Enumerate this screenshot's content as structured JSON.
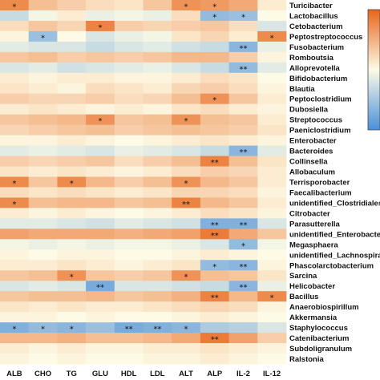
{
  "chart_data": {
    "type": "heatmap",
    "title": "",
    "xlabel": "",
    "ylabel": "",
    "columns": [
      "ALB",
      "CHO",
      "TG",
      "GLU",
      "HDL",
      "LDL",
      "ALT",
      "ALP",
      "IL-2",
      "IL-12"
    ],
    "rows": [
      "Turicibacter",
      "Lactobacillus",
      "Cetobacterium",
      "Peptostreptococcus",
      "Fusobacterium",
      "Romboutsia",
      "Alloprevotella",
      "Bifidobacterium",
      "Blautia",
      "Peptoclostridium",
      "Dubosiella",
      "Streptococcus",
      "Paeniclostridium",
      "Enterobacter",
      "Bacteroides",
      "Collinsella",
      "Allobaculum",
      "Terrisporobacter",
      "Faecalibacterium",
      "unidentified_Clostridiales",
      "Citrobacter",
      "Parasutterella",
      "unidentified_Enterobacteriaceae",
      "Megasphaera",
      "unidentified_Lachnospiraceae",
      "Phascolarctobacterium",
      "Sarcina",
      "Helicobacter",
      "Bacillus",
      "Anaerobiospirillum",
      "Akkermansia",
      "Staphylococcus",
      "Catenibacterium",
      "Subdoligranulum",
      "Ralstonia"
    ],
    "values": [
      [
        0.75,
        0.4,
        0.3,
        0.2,
        0.15,
        0.35,
        0.7,
        0.65,
        0.55,
        0.1
      ],
      [
        -0.3,
        -0.05,
        0.1,
        -0.1,
        -0.05,
        -0.1,
        0.2,
        -0.6,
        -0.55,
        0.0
      ],
      [
        0.2,
        0.35,
        0.25,
        0.8,
        0.3,
        0.25,
        0.3,
        0.35,
        0.2,
        -0.2
      ],
      [
        0.05,
        -0.55,
        0.0,
        -0.2,
        -0.1,
        -0.05,
        0.15,
        0.25,
        0.1,
        0.75
      ],
      [
        -0.15,
        -0.2,
        -0.2,
        -0.3,
        -0.2,
        -0.15,
        -0.25,
        -0.3,
        -0.65,
        -0.1
      ],
      [
        0.35,
        0.4,
        0.3,
        0.35,
        0.3,
        0.35,
        0.45,
        0.45,
        0.3,
        0.05
      ],
      [
        -0.2,
        -0.15,
        -0.25,
        -0.2,
        -0.15,
        -0.1,
        -0.2,
        -0.3,
        -0.6,
        -0.15
      ],
      [
        0.1,
        0.05,
        0.1,
        0.1,
        0.05,
        0.05,
        0.1,
        0.2,
        0.15,
        0.0
      ],
      [
        0.15,
        0.1,
        0.05,
        0.2,
        0.15,
        0.1,
        0.25,
        0.3,
        0.2,
        0.05
      ],
      [
        0.3,
        0.25,
        0.25,
        0.3,
        0.2,
        0.25,
        0.4,
        0.7,
        0.35,
        0.1
      ],
      [
        0.1,
        0.15,
        0.1,
        0.05,
        0.1,
        0.05,
        0.15,
        0.2,
        0.1,
        0.05
      ],
      [
        0.35,
        0.4,
        0.45,
        0.7,
        0.35,
        0.4,
        0.7,
        0.4,
        0.35,
        0.1
      ],
      [
        0.25,
        0.3,
        0.35,
        0.4,
        0.3,
        0.35,
        0.4,
        0.35,
        0.3,
        0.15
      ],
      [
        0.05,
        0.05,
        0.1,
        0.05,
        0.0,
        0.05,
        0.1,
        0.15,
        0.1,
        0.05
      ],
      [
        -0.15,
        -0.1,
        -0.15,
        -0.2,
        -0.1,
        -0.15,
        -0.2,
        -0.3,
        -0.65,
        -0.15
      ],
      [
        0.3,
        0.25,
        0.3,
        0.35,
        0.2,
        0.3,
        0.4,
        0.8,
        0.4,
        0.15
      ],
      [
        0.15,
        0.1,
        0.15,
        0.1,
        0.05,
        0.1,
        0.2,
        0.3,
        0.25,
        0.1
      ],
      [
        0.75,
        0.35,
        0.75,
        0.45,
        0.3,
        0.4,
        0.7,
        0.45,
        0.35,
        0.1
      ],
      [
        0.2,
        0.15,
        0.2,
        0.15,
        0.1,
        0.15,
        0.25,
        0.25,
        0.2,
        0.05
      ],
      [
        0.75,
        0.4,
        0.45,
        0.45,
        0.35,
        0.4,
        0.8,
        0.45,
        0.35,
        0.1
      ],
      [
        0.1,
        0.05,
        0.1,
        0.05,
        0.0,
        0.05,
        0.1,
        0.2,
        0.15,
        0.05
      ],
      [
        -0.15,
        -0.15,
        -0.2,
        -0.25,
        -0.15,
        -0.2,
        -0.25,
        -0.7,
        -0.7,
        -0.2
      ],
      [
        0.6,
        0.55,
        0.55,
        0.55,
        0.5,
        0.55,
        0.6,
        0.85,
        0.55,
        0.35
      ],
      [
        -0.05,
        -0.1,
        -0.05,
        -0.1,
        -0.05,
        -0.05,
        -0.1,
        -0.2,
        -0.6,
        -0.05
      ],
      [
        0.05,
        0.0,
        0.05,
        0.05,
        0.0,
        0.0,
        0.05,
        0.1,
        0.05,
        0.0
      ],
      [
        0.1,
        0.1,
        0.15,
        0.1,
        0.05,
        0.1,
        0.15,
        -0.6,
        -0.65,
        0.05
      ],
      [
        0.35,
        0.4,
        0.7,
        0.35,
        0.3,
        0.35,
        0.7,
        0.4,
        0.35,
        0.15
      ],
      [
        -0.2,
        -0.15,
        -0.2,
        -0.75,
        -0.2,
        -0.2,
        -0.25,
        -0.3,
        -0.65,
        -0.1
      ],
      [
        0.35,
        0.4,
        0.4,
        0.45,
        0.35,
        0.4,
        0.5,
        0.8,
        0.45,
        0.75
      ],
      [
        0.15,
        0.1,
        0.15,
        0.1,
        0.1,
        0.15,
        0.2,
        0.25,
        0.2,
        0.05
      ],
      [
        0.05,
        0.05,
        0.0,
        0.05,
        0.0,
        0.0,
        0.05,
        0.1,
        0.05,
        0.0
      ],
      [
        -0.7,
        -0.6,
        -0.65,
        -0.55,
        -0.75,
        -0.7,
        -0.65,
        -0.45,
        -0.4,
        -0.2
      ],
      [
        0.45,
        0.45,
        0.5,
        0.4,
        0.4,
        0.45,
        0.55,
        0.85,
        0.6,
        0.3
      ],
      [
        0.1,
        0.05,
        0.1,
        0.05,
        0.05,
        0.1,
        0.1,
        0.15,
        0.1,
        0.05
      ],
      [
        0.05,
        0.0,
        0.05,
        0.0,
        0.0,
        0.05,
        0.05,
        0.1,
        0.05,
        0.0
      ]
    ],
    "significance": [
      [
        "*",
        "",
        "",
        "",
        "",
        "",
        "*",
        "*",
        "",
        ""
      ],
      [
        "",
        "",
        "",
        "",
        "",
        "",
        "",
        "*",
        "*",
        ""
      ],
      [
        "",
        "",
        "",
        "*",
        "",
        "",
        "",
        "",
        "",
        ""
      ],
      [
        "",
        "*",
        "",
        "",
        "",
        "",
        "",
        "",
        "",
        "*"
      ],
      [
        "",
        "",
        "",
        "",
        "",
        "",
        "",
        "",
        "**",
        ""
      ],
      [
        "",
        "",
        "",
        "",
        "",
        "",
        "",
        "",
        "",
        ""
      ],
      [
        "",
        "",
        "",
        "",
        "",
        "",
        "",
        "",
        "**",
        ""
      ],
      [
        "",
        "",
        "",
        "",
        "",
        "",
        "",
        "",
        "",
        ""
      ],
      [
        "",
        "",
        "",
        "",
        "",
        "",
        "",
        "",
        "",
        ""
      ],
      [
        "",
        "",
        "",
        "",
        "",
        "",
        "",
        "*",
        "",
        ""
      ],
      [
        "",
        "",
        "",
        "",
        "",
        "",
        "",
        "",
        "",
        ""
      ],
      [
        "",
        "",
        "",
        "*",
        "",
        "",
        "*",
        "",
        "",
        ""
      ],
      [
        "",
        "",
        "",
        "",
        "",
        "",
        "",
        "",
        "",
        ""
      ],
      [
        "",
        "",
        "",
        "",
        "",
        "",
        "",
        "",
        "",
        ""
      ],
      [
        "",
        "",
        "",
        "",
        "",
        "",
        "",
        "",
        "**",
        ""
      ],
      [
        "",
        "",
        "",
        "",
        "",
        "",
        "",
        "**",
        "",
        ""
      ],
      [
        "",
        "",
        "",
        "",
        "",
        "",
        "",
        "",
        "",
        ""
      ],
      [
        "*",
        "",
        "*",
        "",
        "",
        "",
        "*",
        "",
        "",
        ""
      ],
      [
        "",
        "",
        "",
        "",
        "",
        "",
        "",
        "",
        "",
        ""
      ],
      [
        "*",
        "",
        "",
        "",
        "",
        "",
        "**",
        "",
        "",
        ""
      ],
      [
        "",
        "",
        "",
        "",
        "",
        "",
        "",
        "",
        "",
        ""
      ],
      [
        "",
        "",
        "",
        "",
        "",
        "",
        "",
        "**",
        "**",
        ""
      ],
      [
        "",
        "",
        "",
        "",
        "",
        "",
        "",
        "**",
        "",
        ""
      ],
      [
        "",
        "",
        "",
        "",
        "",
        "",
        "",
        "",
        "*",
        ""
      ],
      [
        "",
        "",
        "",
        "",
        "",
        "",
        "",
        "",
        "",
        ""
      ],
      [
        "",
        "",
        "",
        "",
        "",
        "",
        "",
        "*",
        "**",
        ""
      ],
      [
        "",
        "",
        "*",
        "",
        "",
        "",
        "*",
        "",
        "",
        ""
      ],
      [
        "",
        "",
        "",
        "**",
        "",
        "",
        "",
        "",
        "**",
        ""
      ],
      [
        "",
        "",
        "",
        "",
        "",
        "",
        "",
        "**",
        "",
        "*"
      ],
      [
        "",
        "",
        "",
        "",
        "",
        "",
        "",
        "",
        "",
        ""
      ],
      [
        "",
        "",
        "",
        "",
        "",
        "",
        "",
        "",
        "",
        ""
      ],
      [
        "*",
        "*",
        "*",
        "",
        "**",
        "**",
        "*",
        "",
        "",
        ""
      ],
      [
        "",
        "",
        "",
        "",
        "",
        "",
        "",
        "**",
        "",
        ""
      ],
      [
        "",
        "",
        "",
        "",
        "",
        "",
        "",
        "",
        "",
        ""
      ],
      [
        "",
        "",
        "",
        "",
        "",
        "",
        "",
        "",
        "",
        ""
      ]
    ],
    "color_scale": {
      "low": "#4a90d9",
      "mid": "#fdfbe6",
      "high": "#e8651a",
      "range": [
        -1,
        1
      ]
    },
    "legend_placement": "right (colorbar)",
    "grid": false
  }
}
